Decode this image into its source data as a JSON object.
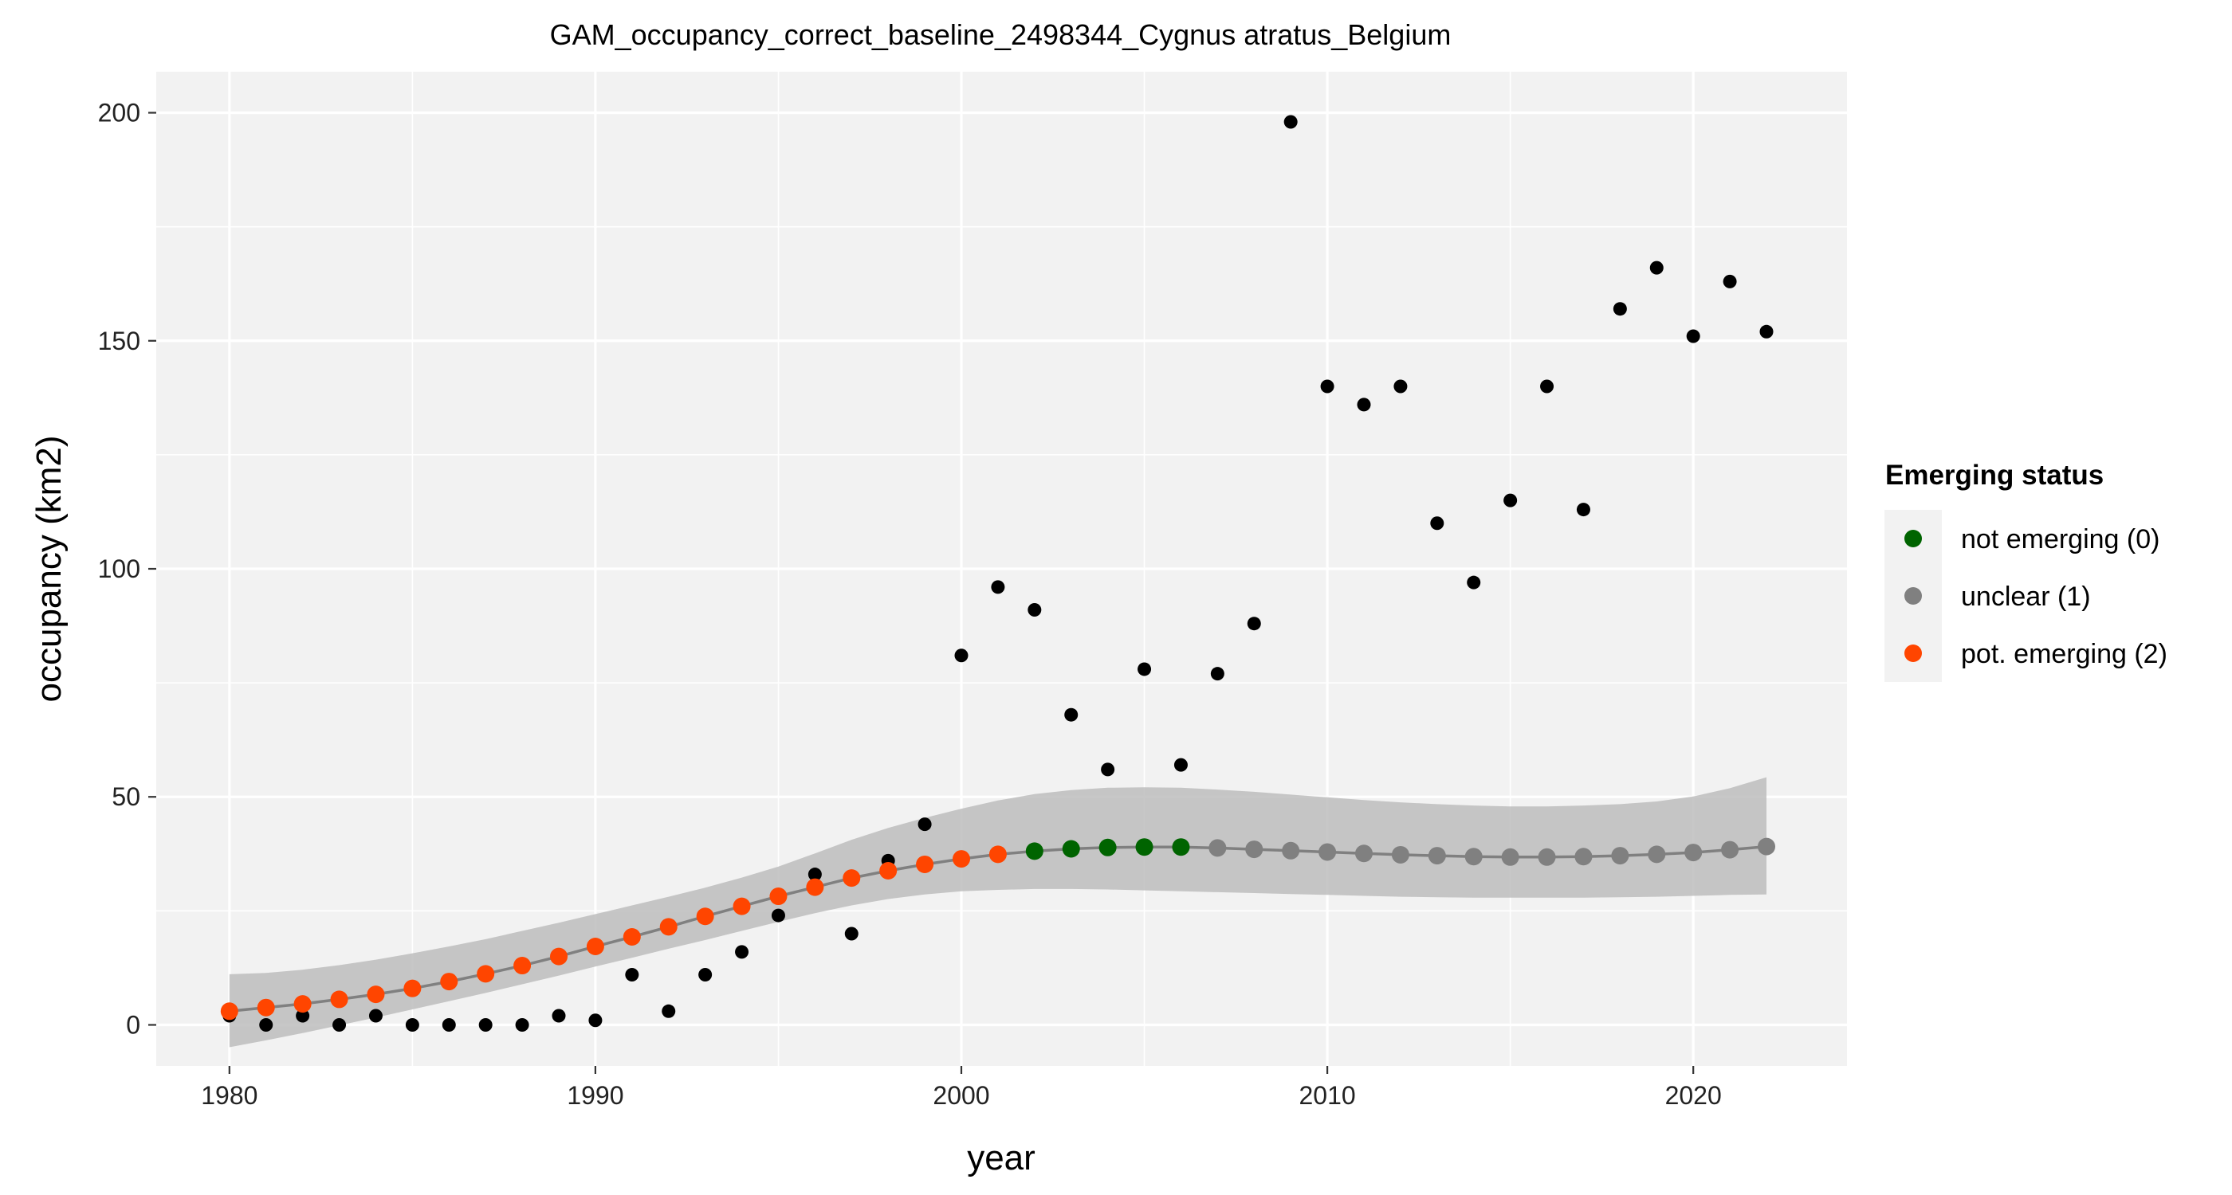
{
  "chart_data": {
    "type": "scatter",
    "title": "GAM_occupancy_correct_baseline_2498344_Cygnus atratus_Belgium",
    "xlabel": "year",
    "ylabel": "occupancy (km2)",
    "xlim": [
      1978,
      2024.2
    ],
    "ylim": [
      -9,
      209
    ],
    "x_ticks": [
      1980,
      1990,
      2000,
      2010,
      2020
    ],
    "y_ticks": [
      0,
      50,
      100,
      150,
      200
    ],
    "grid": true,
    "legend": {
      "title": "Emerging status",
      "position": "right",
      "items": [
        {
          "label": "not emerging (0)",
          "color": "#006400",
          "status": 0
        },
        {
          "label": "unclear (1)",
          "color": "#808080",
          "status": 1
        },
        {
          "label": "pot. emerging (2)",
          "color": "#FF4500",
          "status": 2
        }
      ]
    },
    "observed": {
      "color": "#000000",
      "x": [
        1980,
        1981,
        1982,
        1983,
        1984,
        1985,
        1986,
        1987,
        1988,
        1989,
        1990,
        1991,
        1992,
        1993,
        1994,
        1995,
        1996,
        1997,
        1998,
        1999,
        2000,
        2001,
        2002,
        2003,
        2004,
        2005,
        2006,
        2007,
        2008,
        2009,
        2010,
        2011,
        2012,
        2013,
        2014,
        2015,
        2016,
        2017,
        2018,
        2019,
        2020,
        2021,
        2022
      ],
      "y": [
        2,
        0,
        2,
        0,
        2,
        0,
        0,
        0,
        0,
        2,
        1,
        11,
        3,
        11,
        16,
        24,
        33,
        20,
        36,
        44,
        81,
        96,
        91,
        68,
        56,
        78,
        57,
        77,
        88,
        198,
        140,
        136,
        140,
        110,
        97,
        115,
        140,
        113,
        157,
        166,
        151,
        163,
        152
      ]
    },
    "fit": {
      "line_color": "#808080",
      "band_color": "#bdbdbd",
      "x": [
        1980,
        1981,
        1982,
        1983,
        1984,
        1985,
        1986,
        1987,
        1988,
        1989,
        1990,
        1991,
        1992,
        1993,
        1994,
        1995,
        1996,
        1997,
        1998,
        1999,
        2000,
        2001,
        2002,
        2003,
        2004,
        2005,
        2006,
        2007,
        2008,
        2009,
        2010,
        2011,
        2012,
        2013,
        2014,
        2015,
        2016,
        2017,
        2018,
        2019,
        2020,
        2021,
        2022
      ],
      "y": [
        3,
        3.8,
        4.6,
        5.6,
        6.7,
        8,
        9.5,
        11.2,
        13,
        15,
        17.2,
        19.3,
        21.5,
        23.8,
        26,
        28.2,
        30.2,
        32.2,
        33.8,
        35.2,
        36.4,
        37.4,
        38.1,
        38.6,
        38.9,
        39,
        39,
        38.8,
        38.5,
        38.2,
        37.9,
        37.6,
        37.3,
        37.1,
        36.9,
        36.8,
        36.8,
        36.9,
        37.1,
        37.4,
        37.8,
        38.4,
        39.1
      ],
      "lower": [
        -4.9,
        -3.4,
        -1.8,
        -0.1,
        1.6,
        3.4,
        5.2,
        7,
        8.9,
        10.8,
        12.8,
        14.7,
        16.7,
        18.6,
        20.6,
        22.6,
        24.5,
        26.2,
        27.6,
        28.6,
        29.3,
        29.6,
        29.8,
        29.8,
        29.7,
        29.5,
        29.3,
        29.1,
        28.9,
        28.7,
        28.5,
        28.3,
        28.1,
        28,
        27.9,
        27.9,
        27.9,
        27.9,
        28,
        28.1,
        28.3,
        28.5,
        28.6
      ],
      "upper": [
        11.1,
        11.4,
        12.1,
        13.1,
        14.3,
        15.7,
        17.2,
        18.8,
        20.6,
        22.4,
        24.3,
        26.2,
        28.1,
        30.1,
        32.3,
        34.7,
        37.6,
        40.6,
        43.2,
        45.4,
        47.4,
        49.2,
        50.6,
        51.5,
        52,
        52.1,
        52,
        51.6,
        51.1,
        50.5,
        49.9,
        49.3,
        48.8,
        48.4,
        48.1,
        47.9,
        47.9,
        48.1,
        48.4,
        49,
        50.1,
        51.9,
        54.3
      ],
      "status": [
        2,
        2,
        2,
        2,
        2,
        2,
        2,
        2,
        2,
        2,
        2,
        2,
        2,
        2,
        2,
        2,
        2,
        2,
        2,
        2,
        2,
        2,
        0,
        0,
        0,
        0,
        0,
        1,
        1,
        1,
        1,
        1,
        1,
        1,
        1,
        1,
        1,
        1,
        1,
        1,
        1,
        1,
        1
      ]
    }
  }
}
